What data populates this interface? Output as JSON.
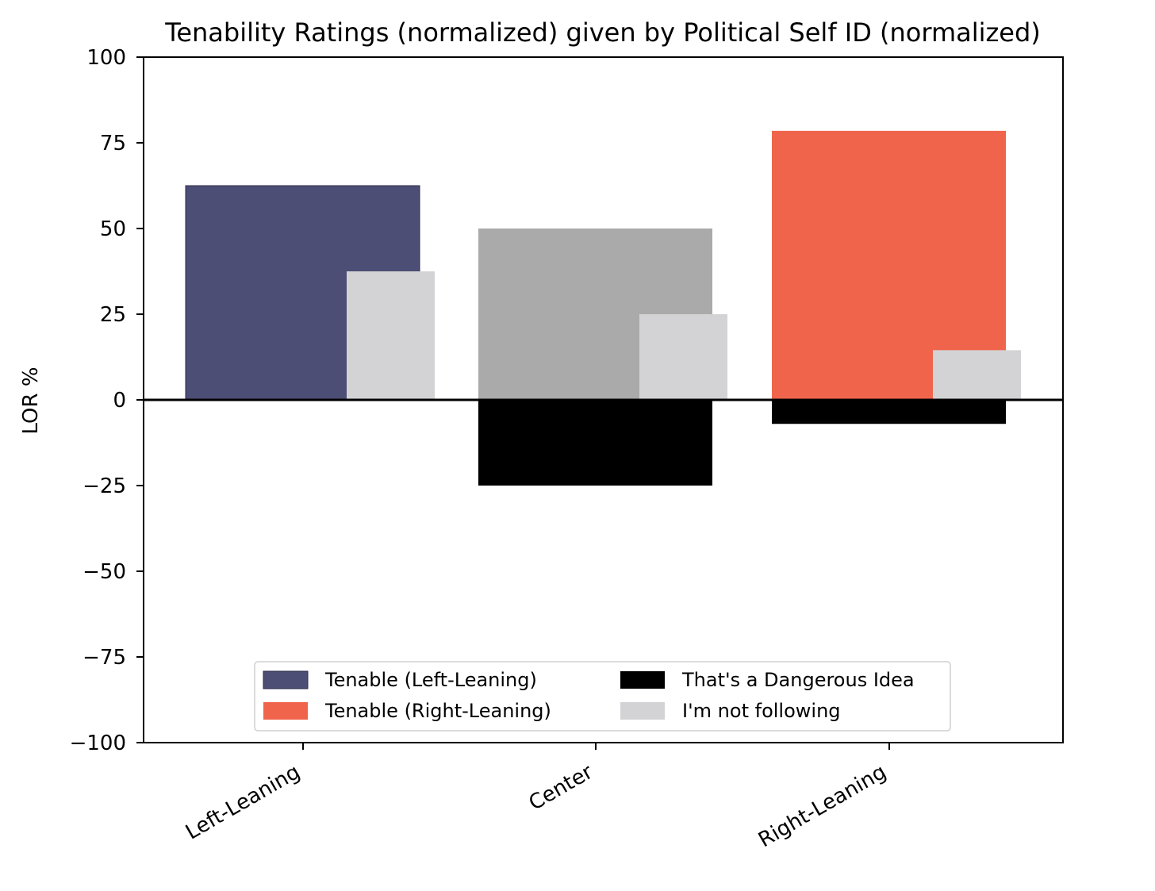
{
  "chart_data": {
    "type": "bar",
    "title": "Tenability Ratings (normalized) given by Political Self ID (normalized)",
    "xlabel": "",
    "ylabel": "LOR %",
    "ylim": [
      -100,
      100
    ],
    "yticks": [
      100,
      75,
      50,
      25,
      0,
      -25,
      -50,
      -75,
      -100
    ],
    "ytick_labels": [
      "100",
      "75",
      "50",
      "25",
      "0",
      "−25",
      "−50",
      "−75",
      "−100"
    ],
    "categories": [
      "Left-Leaning",
      "Center",
      "Right-Leaning"
    ],
    "tenable_colors": [
      "#4d4e75",
      "#aaaaaa",
      "#f0644c"
    ],
    "series": [
      {
        "name": "Tenable",
        "values": [
          62.5,
          50,
          78.5
        ]
      },
      {
        "name": "That's a Dangerous Idea",
        "values": [
          0,
          -25,
          -7
        ],
        "color": "#000000"
      },
      {
        "name": "I'm not following",
        "values": [
          37.5,
          25,
          14.5
        ],
        "color": "#d3d3d6"
      }
    ],
    "legend": {
      "location": "lower-center",
      "columns": 2,
      "entries": [
        {
          "label": "Tenable (Left-Leaning)",
          "color": "#4d4e75"
        },
        {
          "label": "That's a Dangerous Idea",
          "color": "#000000"
        },
        {
          "label": "Tenable (Right-Leaning)",
          "color": "#f0644c"
        },
        {
          "label": "I'm not following",
          "color": "#d3d3d6"
        }
      ]
    },
    "zero_line": true,
    "grid": false
  }
}
